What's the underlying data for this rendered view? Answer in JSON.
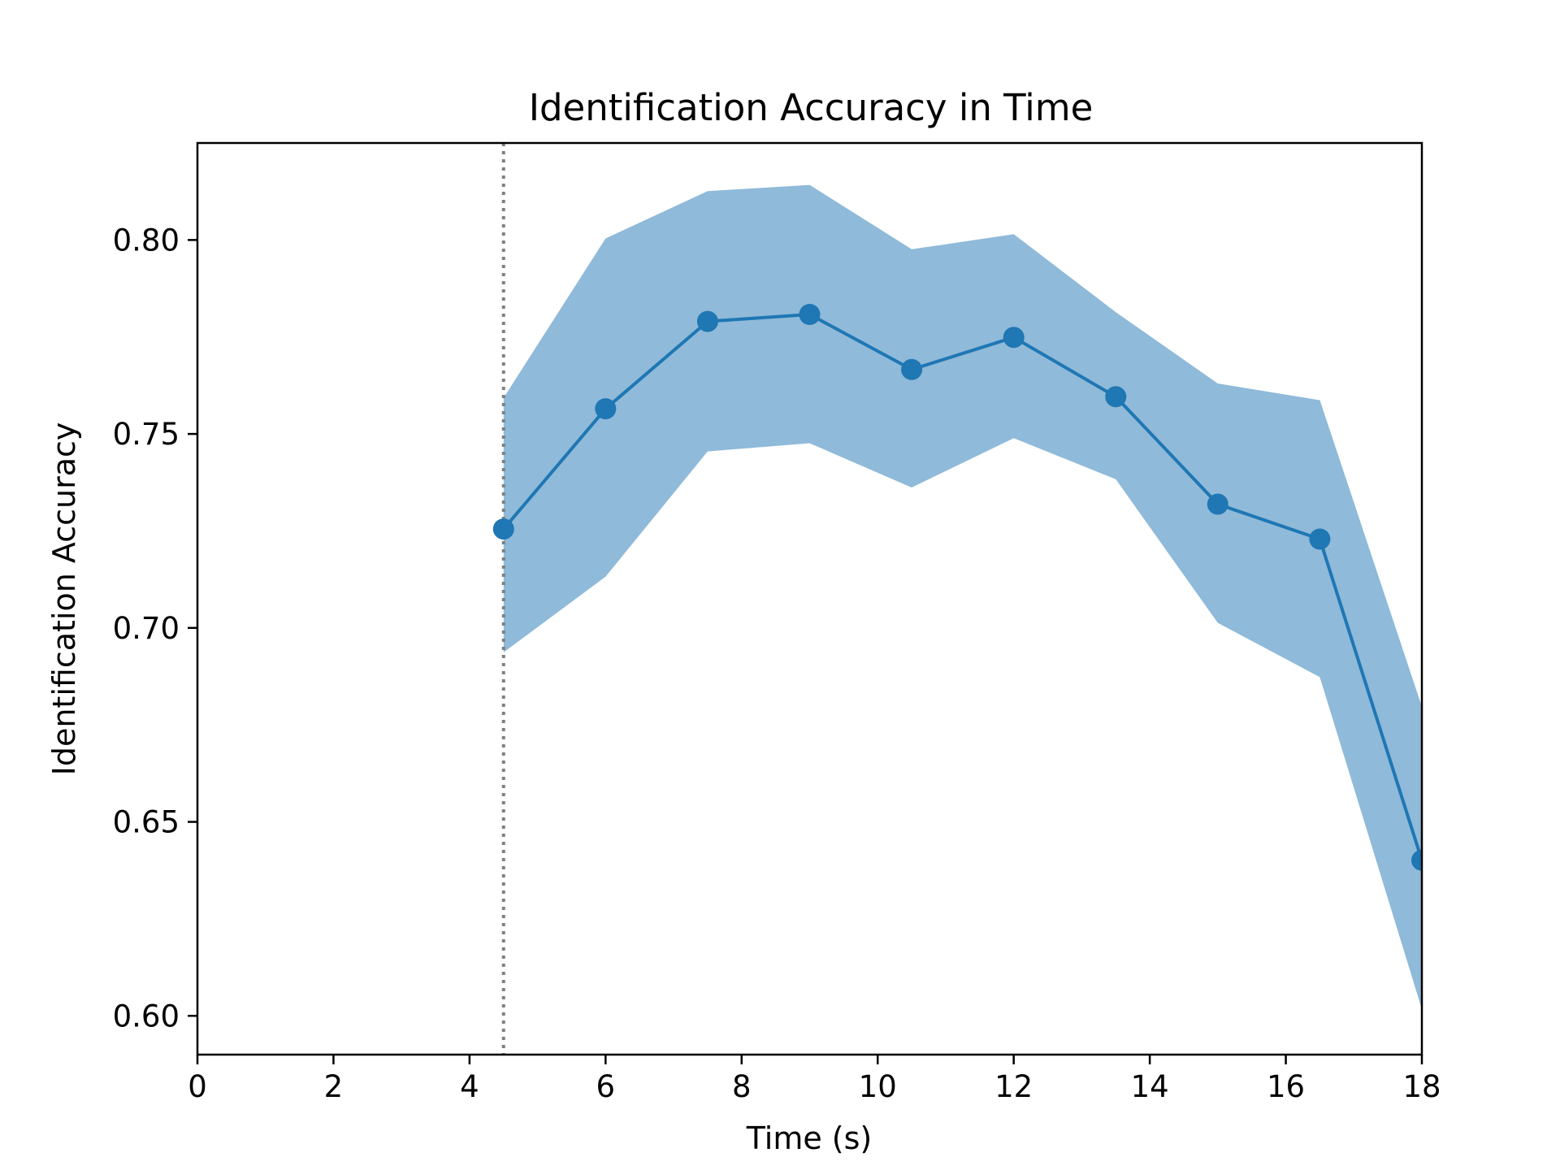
{
  "chart_data": {
    "type": "line",
    "title": "Identification Accuracy in Time",
    "xlabel": "Time (s)",
    "ylabel": "Identification Accuracy",
    "xlim": [
      0,
      18
    ],
    "ylim": [
      0.59,
      0.825
    ],
    "xticks": [
      0,
      2,
      4,
      6,
      8,
      10,
      12,
      14,
      16,
      18
    ],
    "xtick_labels": [
      "0",
      "2",
      "4",
      "6",
      "8",
      "10",
      "12",
      "14",
      "16",
      "18"
    ],
    "yticks": [
      0.6,
      0.65,
      0.7,
      0.75,
      0.8
    ],
    "ytick_labels": [
      "0.60",
      "0.65",
      "0.70",
      "0.75",
      "0.80"
    ],
    "grid": false,
    "legend": "none",
    "series": [
      {
        "x": [
          4.5,
          6,
          7.5,
          9,
          10.5,
          12,
          13.5,
          15,
          16.5,
          18
        ],
        "y": [
          0.7255,
          0.7565,
          0.779,
          0.7808,
          0.7666,
          0.7749,
          0.7596,
          0.7319,
          0.7229,
          0.6401
        ],
        "band_upper": [
          0.7593,
          0.8004,
          0.8126,
          0.8142,
          0.7976,
          0.8015,
          0.7814,
          0.763,
          0.7587,
          0.6797
        ],
        "band_lower": [
          0.6937,
          0.7132,
          0.7455,
          0.7476,
          0.7362,
          0.7489,
          0.7383,
          0.7013,
          0.6873,
          0.6017
        ],
        "color": "#1f77b4",
        "band_color": "#8fbad9",
        "marker": "circle"
      }
    ],
    "reference_lines": [
      {
        "orientation": "vertical",
        "x": 4.5,
        "style": "dotted",
        "color": "#808080"
      }
    ]
  }
}
